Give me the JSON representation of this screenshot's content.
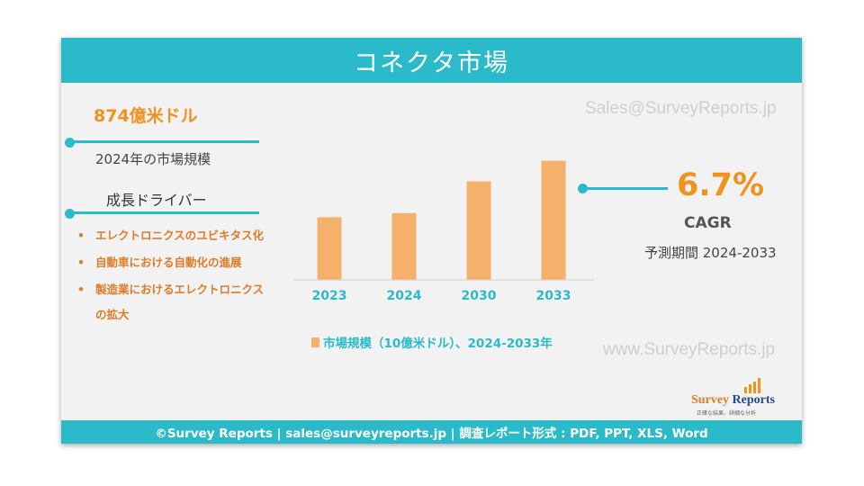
{
  "title": "コネクタ市場",
  "market_size": {
    "value": "874億米ドル",
    "label": "2024年の市場規模"
  },
  "drivers": {
    "title": "成長ドライバー",
    "items": [
      "エレクトロニクスのユビキタス化",
      "自動車における自動化の進展",
      "製造業におけるエレクトロニクスの拡大"
    ]
  },
  "watermarks": {
    "top": "Sales@SurveyReports.jp",
    "bottom": "www.SurveyReports.jp"
  },
  "cagr": {
    "value": "6.7%",
    "label": "CAGR",
    "period": "予測期間 2024-2033"
  },
  "logo": {
    "name_part1": "Survey",
    "name_part2": "Reports",
    "tagline": "正確な結果、詳細な分析"
  },
  "footer": "©Survey Reports | sales@surveyreports.jp |  調査レポート形式 : PDF, PPT, XLS, Word",
  "colors": {
    "accent": "#2bbac9",
    "orange": "#f0921e",
    "bar": "#f5b06b"
  },
  "chart_data": {
    "type": "bar",
    "categories": [
      "2023",
      "2024",
      "2030",
      "2033"
    ],
    "series": [
      {
        "name": "市場規模（10億米ドル）、2024-2033年",
        "values": [
          81.9,
          87.4,
          128.9,
          155.8
        ]
      }
    ],
    "title": "",
    "xlabel": "",
    "ylabel": "",
    "ylim": [
      0,
      160
    ],
    "grid": false,
    "legend": "bottom"
  }
}
